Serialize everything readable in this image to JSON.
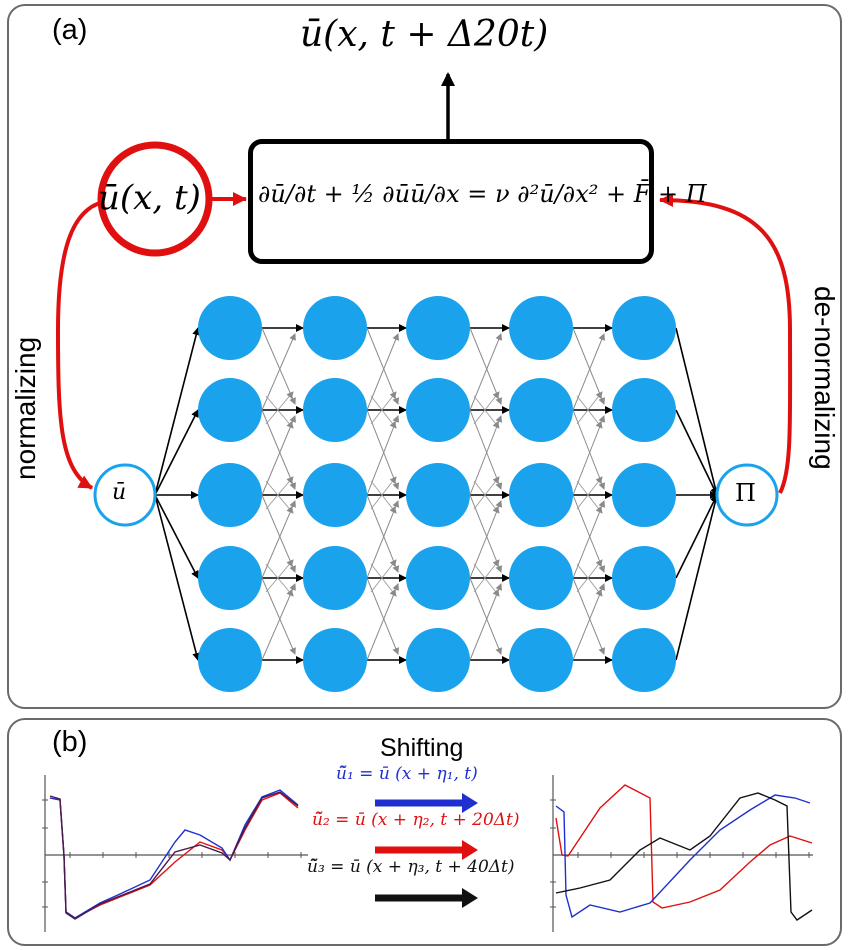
{
  "panel_a": {
    "label": "(a)",
    "output_label": "ū(x, t + Δ20t)",
    "input_label": "ū(x, t)",
    "equation": "∂ū/∂t + ½ ∂ūū/∂x = ν ∂²ū/∂x² + F̄ + Π",
    "left_arrow_label": "normalizing",
    "right_arrow_label": "de-normalizing",
    "input_node": "ū",
    "output_node": "Π",
    "hidden_layers": 5,
    "nodes_per_layer": 5
  },
  "panel_b": {
    "label": "(b)",
    "title": "Shifting",
    "shifts": [
      {
        "text": "ũ̃₁ = ū (x + η₁, t)",
        "color": "#1f2fd0"
      },
      {
        "text": "ũ̃₂ = ū (x + η₂, t + 20Δt)",
        "color": "#e01010"
      },
      {
        "text": "ũ̃₃ = ū (x + η₃, t + 40Δt)",
        "color": "#111111"
      }
    ]
  },
  "colors": {
    "node_fill": "#1aa3ec",
    "accent_red": "#e01010",
    "blue": "#1f2fd0",
    "frame": "#6a6a6a"
  }
}
